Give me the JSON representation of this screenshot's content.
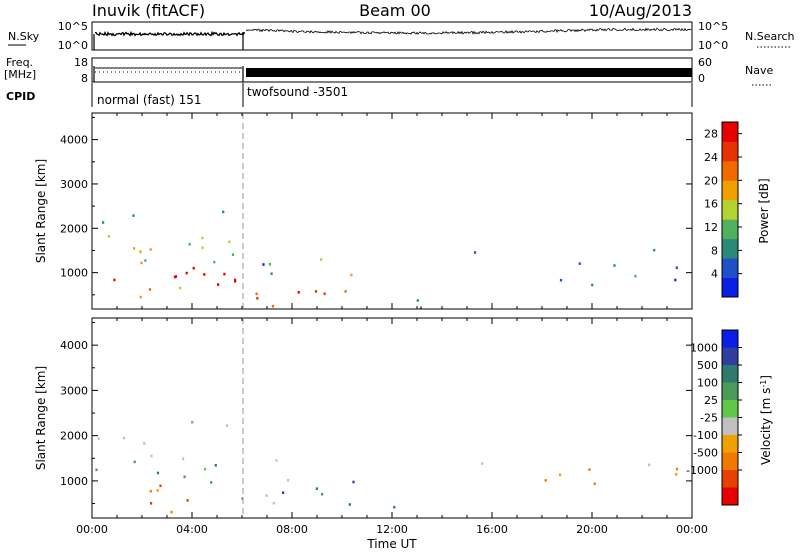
{
  "header": {
    "station": "Inuvik (fitACF)",
    "beam": "Beam 00",
    "date": "10/Aug/2013"
  },
  "strip_sky": {
    "left_label": "N.Sky",
    "left_ticks": [
      "10^5",
      "10^0"
    ],
    "right_label": "N.Search",
    "right_ticks": [
      "10^5",
      "10^0"
    ]
  },
  "strip_freq": {
    "left_label_top": "Freq.",
    "left_label_unit": "[MHz]",
    "left_ticks": [
      "18",
      "8"
    ],
    "right_label": "Nave",
    "right_ticks": [
      "60",
      "0"
    ]
  },
  "cpid": {
    "label": "CPID",
    "modes": [
      {
        "name": "normal (fast) 151",
        "start_hour": 0,
        "end_hour": 6
      },
      {
        "name": "twofsound -3501",
        "start_hour": 6,
        "end_hour": 24
      }
    ]
  },
  "colors": {
    "power_scale": [
      "#0a1ee6",
      "#1e50c8",
      "#2a8a7a",
      "#4fb060",
      "#b4d232",
      "#f0a000",
      "#f06a00",
      "#e63200",
      "#e60000"
    ],
    "velocity_scale": [
      "#0a1ee6",
      "#2f3ca0",
      "#2f7a6e",
      "#4a9a5a",
      "#5fc846",
      "#c0c0c0",
      "#f0a000",
      "#f07a00",
      "#e84000",
      "#e60000"
    ]
  },
  "chart_data": [
    {
      "type": "heatmap",
      "name": "Power",
      "xlabel": "",
      "ylabel": "Slant Range [km]",
      "xlim": [
        0,
        24
      ],
      "ylim": [
        180,
        4600
      ],
      "yticks": [
        1000,
        2000,
        3000,
        4000
      ],
      "xticks": [
        0,
        4,
        8,
        12,
        16,
        20,
        24
      ],
      "colorbar": {
        "label": "Power [dB]",
        "ticks": [
          "4",
          "8",
          "12",
          "16",
          "20",
          "24",
          "28"
        ],
        "range": [
          0,
          30
        ]
      }
    },
    {
      "type": "heatmap",
      "name": "Velocity",
      "xlabel": "Time UT",
      "ylabel": "Slant Range [km]",
      "xlim": [
        0,
        24
      ],
      "ylim": [
        180,
        4600
      ],
      "yticks": [
        1000,
        2000,
        3000,
        4000
      ],
      "xticks": [
        0,
        4,
        8,
        12,
        16,
        20,
        24
      ],
      "xtick_labels": [
        "00:00",
        "04:00",
        "08:00",
        "12:00",
        "16:00",
        "20:00",
        "00:00"
      ],
      "colorbar": {
        "label": "Velocity [m s",
        "label_sup": "-1",
        "label_close": "]",
        "ticks": [
          "1000",
          "500",
          "100",
          "25",
          "-25",
          "-100",
          "-500",
          "-1000"
        ]
      }
    }
  ]
}
